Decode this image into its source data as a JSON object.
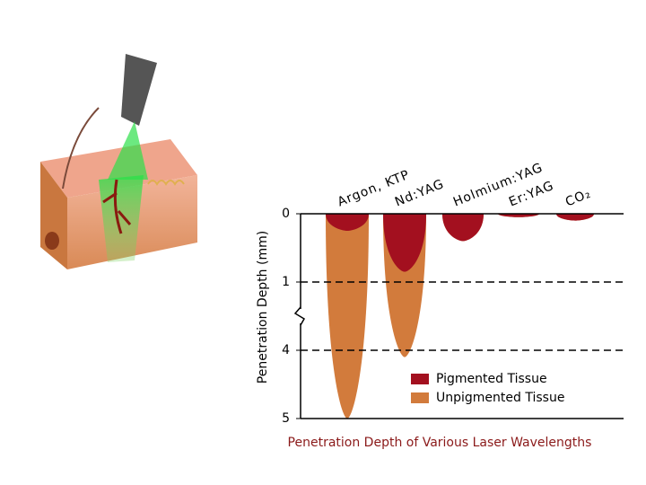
{
  "chart_data": {
    "type": "bulb",
    "title": "Penetration Depth of Various Laser Wavelengths",
    "y_label": "Penetration Depth (mm)",
    "categories": [
      "Argon, KTP",
      "Nd:YAG",
      "Holmium:YAG",
      "Er:YAG",
      "CO₂"
    ],
    "series": [
      {
        "name": "Unpigmented Tissue",
        "color": "#d27b3c",
        "values": [
          5,
          4.1,
          0.4,
          0.05,
          0.1
        ]
      },
      {
        "name": "Pigmented Tissue",
        "color": "#a3101f",
        "values": [
          0.25,
          0.85,
          0.4,
          0.05,
          0.1
        ]
      }
    ],
    "ylim": [
      0,
      5
    ],
    "yticks": [
      0,
      1,
      4,
      5
    ],
    "grid": true,
    "axis_break": true,
    "legend": "lower right"
  }
}
